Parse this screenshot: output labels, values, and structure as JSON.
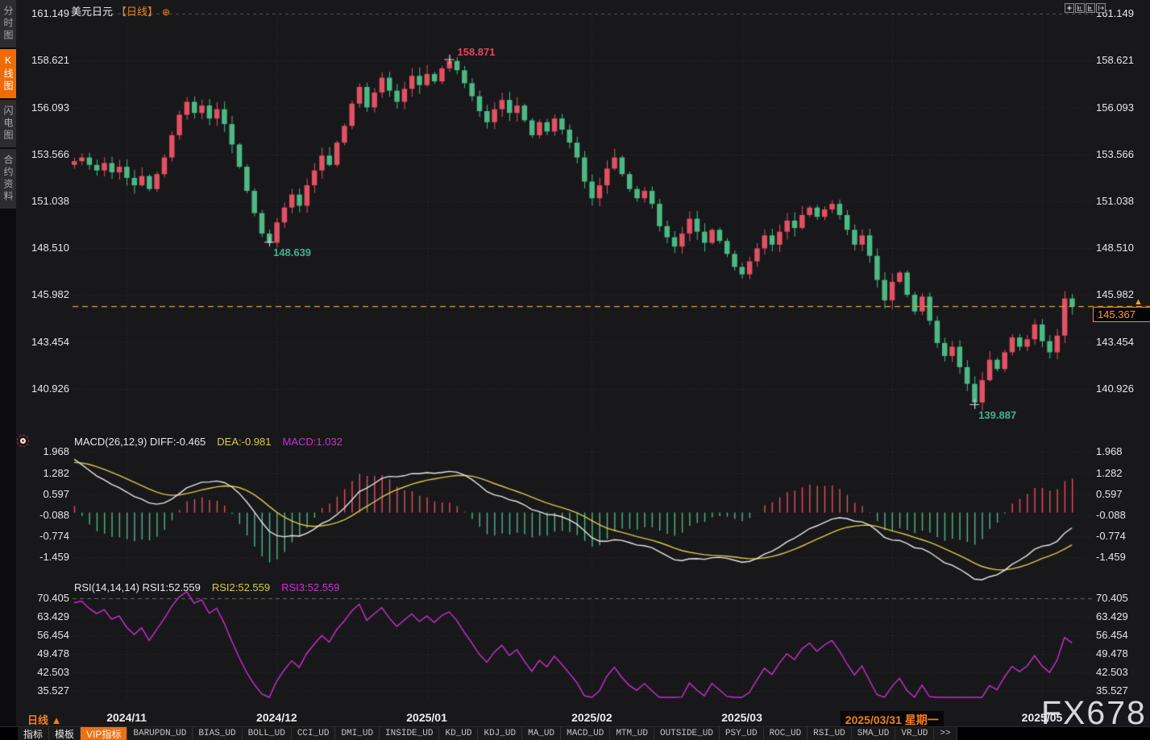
{
  "window": {
    "title_symbol": "美元日元",
    "title_period": "【日线】"
  },
  "icons": {
    "circle_plus": "⊕",
    "up_arrow": "▲",
    "topbar": [
      "move-icon",
      "axis-zoom-y-icon",
      "axis-zoom-x-icon",
      "shift-right-icon"
    ]
  },
  "colors": {
    "up": "#e25164",
    "down": "#4db985",
    "accent": "#f08018",
    "grid": "#333338",
    "diff_line": "#e8e8e8",
    "dea_line": "#d8cc4a",
    "rsi_line": "#cc2fd4",
    "ann_high": "#e0455a",
    "ann_low": "#3fb389",
    "price_line": "#f59d25"
  },
  "sidebar": {
    "items": [
      {
        "label": "分时图",
        "active": false
      },
      {
        "label": "K线图",
        "active": true
      },
      {
        "label": "闪电图",
        "active": false
      },
      {
        "label": "合约资料",
        "active": false
      }
    ]
  },
  "main_axis": {
    "ticks": [
      "161.149",
      "158.621",
      "156.093",
      "153.566",
      "151.038",
      "148.510",
      "145.982",
      "143.454",
      "140.926"
    ]
  },
  "macd": {
    "title": "MACD(26,12,9)",
    "diff_label": "DIFF:-0.465",
    "dea_label": "DEA:-0.981",
    "macd_label": "MACD:1.032",
    "ticks": [
      "1.968",
      "1.282",
      "0.597",
      "-0.088",
      "-0.774",
      "-1.459"
    ]
  },
  "rsi": {
    "title": "RSI(14,14,14)",
    "rsi1_label": "RSI1:52.559",
    "rsi2_label": "RSI2:52.559",
    "rsi3_label": "RSI3:52.559",
    "ticks": [
      "70.405",
      "63.429",
      "56.454",
      "49.478",
      "42.503",
      "35.527"
    ]
  },
  "annotations": {
    "current_price": "145.367"
  },
  "xaxis": {
    "period_label": "日线",
    "labels": [
      {
        "text": "2024/11",
        "index": 7,
        "highlight": false
      },
      {
        "text": "2024/12",
        "index": 27,
        "highlight": false
      },
      {
        "text": "2025/01",
        "index": 47,
        "highlight": false
      },
      {
        "text": "2025/02",
        "index": 69,
        "highlight": false
      },
      {
        "text": "2025/03",
        "index": 89,
        "highlight": false
      },
      {
        "text": "2025/03/31 星期一",
        "index": 109,
        "highlight": true
      },
      {
        "text": "2025/05",
        "index": 129,
        "highlight": false
      }
    ]
  },
  "watermark": "FX678",
  "toolbar": {
    "tabs": [
      {
        "label": "指标",
        "active": false,
        "cjk": true
      },
      {
        "label": "模板",
        "active": false,
        "cjk": true
      },
      {
        "label": "VIP指标",
        "active": true,
        "cjk": true
      },
      {
        "label": "BARUPDN_UD"
      },
      {
        "label": "BIAS_UD"
      },
      {
        "label": "BOLL_UD"
      },
      {
        "label": "CCI_UD"
      },
      {
        "label": "DMI_UD"
      },
      {
        "label": "INSIDE_UD"
      },
      {
        "label": "KD_UD"
      },
      {
        "label": "KDJ_UD"
      },
      {
        "label": "MA_UD"
      },
      {
        "label": "MACD_UD"
      },
      {
        "label": "MTM_UD"
      },
      {
        "label": "OUTSIDE_UD"
      },
      {
        "label": "PSY_UD"
      },
      {
        "label": "ROC_UD"
      },
      {
        "label": "RSI_UD"
      },
      {
        "label": "SMA_UD"
      },
      {
        "label": "VR_UD"
      },
      {
        "label": ">>"
      }
    ]
  },
  "chart_data": {
    "type": "candlestick",
    "symbol": "美元日元",
    "period": "日线",
    "last_price": 145.367,
    "ylim_main": [
      139.0,
      161.5
    ],
    "ylim_macd": [
      -1.9,
      2.2
    ],
    "ylim_rsi": [
      32.5,
      73.4
    ],
    "x_range": [
      "2024/10下旬",
      "2025/05"
    ],
    "open_first": 153.0,
    "closes": [
      153.2,
      153.4,
      153.0,
      152.7,
      153.1,
      152.6,
      152.9,
      152.3,
      151.9,
      152.4,
      151.7,
      152.5,
      153.4,
      154.6,
      155.7,
      156.4,
      155.8,
      156.2,
      155.5,
      156.0,
      155.2,
      154.1,
      152.9,
      151.6,
      150.4,
      149.3,
      148.8,
      149.9,
      150.7,
      151.4,
      150.8,
      151.9,
      152.7,
      153.5,
      153.0,
      154.2,
      155.1,
      156.3,
      157.2,
      156.1,
      156.9,
      157.7,
      157.0,
      156.4,
      157.1,
      157.8,
      157.3,
      157.9,
      157.5,
      158.2,
      158.6,
      158.1,
      157.4,
      156.7,
      155.9,
      155.3,
      156.0,
      156.5,
      155.8,
      156.2,
      155.4,
      154.6,
      155.3,
      154.8,
      155.5,
      154.9,
      154.2,
      153.4,
      152.1,
      151.2,
      151.9,
      152.8,
      153.4,
      152.5,
      151.7,
      151.2,
      151.6,
      150.9,
      149.7,
      149.1,
      148.6,
      149.3,
      150.1,
      149.4,
      148.8,
      149.5,
      148.9,
      148.2,
      147.5,
      147.1,
      147.8,
      148.5,
      149.2,
      148.7,
      149.4,
      150.0,
      149.6,
      150.3,
      150.7,
      150.2,
      150.6,
      150.9,
      150.3,
      149.5,
      148.7,
      149.2,
      148.1,
      146.8,
      145.7,
      146.7,
      147.2,
      146.0,
      145.1,
      145.9,
      144.6,
      143.4,
      142.7,
      143.2,
      142.1,
      141.2,
      140.2,
      141.4,
      142.5,
      142.0,
      142.9,
      143.7,
      143.2,
      143.6,
      144.4,
      143.5,
      142.9,
      143.8,
      145.8,
      145.37
    ],
    "overrides": {
      "26": {
        "low": 148.639
      },
      "50": {
        "high": 158.871
      },
      "120": {
        "low": 139.887
      },
      "133": {
        "high": 146.05
      }
    },
    "markers": [
      {
        "index": 50,
        "price": 158.871,
        "label": "158.871",
        "type": "high"
      },
      {
        "index": 26,
        "price": 148.639,
        "label": "148.639",
        "type": "low"
      },
      {
        "index": 120,
        "price": 139.887,
        "label": "139.887",
        "type": "low"
      }
    ],
    "indicators": {
      "macd": {
        "params": [
          26,
          12,
          9
        ],
        "diff": -0.465,
        "dea": -0.981,
        "macd": 1.032
      },
      "rsi": {
        "params": [
          14,
          14,
          14
        ],
        "rsi1": 52.559,
        "rsi2": 52.559,
        "rsi3": 52.559
      }
    }
  }
}
